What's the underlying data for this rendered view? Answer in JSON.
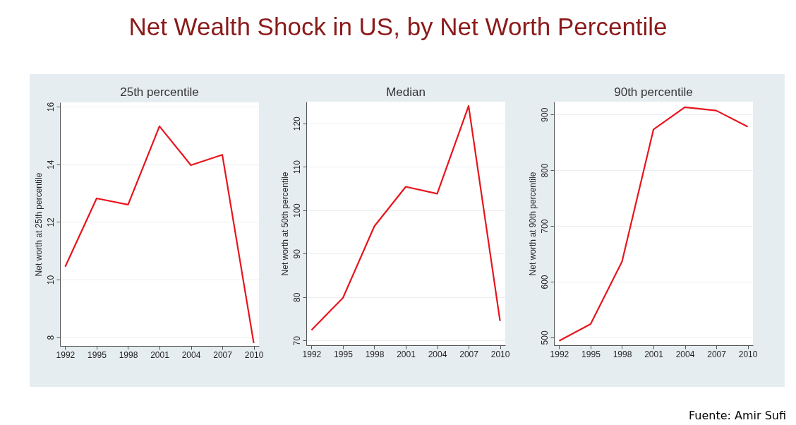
{
  "chart_data": [
    {
      "type": "line",
      "title": "Net Wealth Shock in US, by Net Worth Percentile",
      "subtitle": "25th percentile",
      "ylabel": "Net worth at 25th percentile",
      "x": [
        1992,
        1995,
        1998,
        2001,
        2004,
        2007,
        2010
      ],
      "series": [
        {
          "color": "#e8141c",
          "values": [
            10.45,
            12.82,
            12.6,
            15.32,
            13.97,
            14.33,
            7.8
          ]
        }
      ],
      "xlim": [
        1991.5,
        2010.5
      ],
      "xticks": [
        1992,
        1995,
        1998,
        2001,
        2004,
        2007,
        2010
      ],
      "ylim": [
        7.7,
        16.15
      ],
      "yticks": [
        8,
        10,
        12,
        14,
        16
      ],
      "grid": "y",
      "legend": false
    },
    {
      "type": "line",
      "subtitle": "Median",
      "ylabel": "Net worth at 50th percentile",
      "x": [
        1992,
        1995,
        1998,
        2001,
        2004,
        2007,
        2010
      ],
      "series": [
        {
          "color": "#e8141c",
          "values": [
            72.4,
            79.8,
            96.3,
            105.4,
            103.8,
            124,
            74.5
          ]
        }
      ],
      "xlim": [
        1991.5,
        2010.5
      ],
      "xticks": [
        1992,
        1995,
        1998,
        2001,
        2004,
        2007,
        2010
      ],
      "ylim": [
        68.9,
        125
      ],
      "yticks": [
        70,
        80,
        90,
        100,
        110,
        120
      ],
      "grid": "y",
      "legend": false
    },
    {
      "type": "line",
      "subtitle": "90th percentile",
      "ylabel": "Net worth at 90th percentile",
      "x": [
        1992,
        1995,
        1998,
        2001,
        2004,
        2007,
        2010
      ],
      "series": [
        {
          "color": "#e8141c",
          "values": [
            494,
            524,
            636,
            873,
            913,
            907,
            878
          ]
        }
      ],
      "xlim": [
        1991.5,
        2010.5
      ],
      "xticks": [
        1992,
        1995,
        1998,
        2001,
        2004,
        2007,
        2010
      ],
      "ylim": [
        486,
        923
      ],
      "yticks": [
        500,
        600,
        700,
        800,
        900
      ],
      "grid": "y",
      "legend": false,
      "annotations": [
        "Fuente: Amir Sufi"
      ]
    }
  ]
}
